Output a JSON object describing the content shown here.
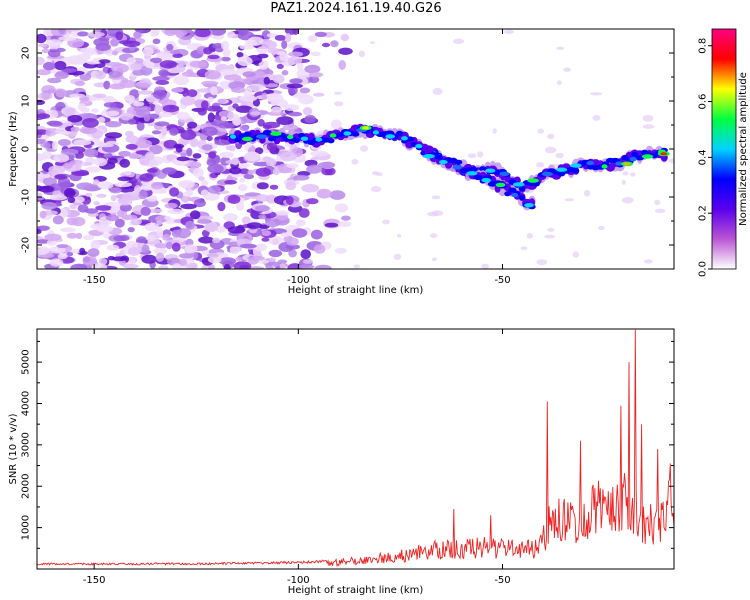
{
  "title": "PAZ1.2024.161.19.40.G26",
  "chart_data": [
    {
      "type": "heatmap",
      "xlabel": "Height of straight line (km)",
      "ylabel": "Frequency (Hz)",
      "xlim": [
        -164,
        -8
      ],
      "ylim": [
        -25,
        25
      ],
      "xticks": [
        -150,
        -100,
        -50
      ],
      "yticks": [
        -20,
        -10,
        0,
        10,
        20
      ],
      "colorbar": {
        "label": "Normalized spectral amplitude",
        "range": [
          0,
          0.86
        ],
        "ticks": [
          0.0,
          0.2,
          0.4,
          0.6,
          0.8
        ],
        "colormap": [
          "#ffffff",
          "#ba55d3",
          "#5a00ee",
          "#0000ff",
          "#00d4ff",
          "#00ff40",
          "#ffff00",
          "#ff0000",
          "#ff0080"
        ]
      },
      "ridge": [
        {
          "x": -116,
          "y": 2.5
        },
        {
          "x": -105,
          "y": 2.6
        },
        {
          "x": -95,
          "y": 1.8
        },
        {
          "x": -85,
          "y": 4.0
        },
        {
          "x": -75,
          "y": 2.5
        },
        {
          "x": -65,
          "y": -2.0
        },
        {
          "x": -58,
          "y": -5.0
        },
        {
          "x": -52,
          "y": -4.0
        },
        {
          "x": -45,
          "y": -8.0
        },
        {
          "x": -38,
          "y": -5.0
        },
        {
          "x": -30,
          "y": -3.5
        },
        {
          "x": -22,
          "y": -3.0
        },
        {
          "x": -15,
          "y": -1.0
        },
        {
          "x": -10,
          "y": -1.0
        }
      ],
      "branch": [
        {
          "x": -68,
          "y": -1.0
        },
        {
          "x": -62,
          "y": -3.0
        },
        {
          "x": -55,
          "y": -6.0
        },
        {
          "x": -48,
          "y": -9.0
        },
        {
          "x": -42,
          "y": -12.0
        }
      ],
      "noise_edge_km": -92
    },
    {
      "type": "line",
      "xlabel": "Height of straight line (km)",
      "ylabel": "SNR (10 * v/v)",
      "xlim": [
        -164,
        -8
      ],
      "ylim": [
        0,
        5800
      ],
      "xticks": [
        -150,
        -100,
        -50
      ],
      "yticks": [
        1000,
        2000,
        3000,
        4000,
        5000
      ],
      "series": [
        {
          "color": "#ee2222",
          "envelope": [
            {
              "x": -164,
              "y": 120
            },
            {
              "x": -140,
              "y": 120
            },
            {
              "x": -120,
              "y": 130
            },
            {
              "x": -105,
              "y": 150
            },
            {
              "x": -95,
              "y": 180
            },
            {
              "x": -85,
              "y": 280
            },
            {
              "x": -75,
              "y": 420
            },
            {
              "x": -70,
              "y": 550
            },
            {
              "x": -65,
              "y": 650
            },
            {
              "x": -60,
              "y": 700
            },
            {
              "x": -55,
              "y": 720
            },
            {
              "x": -50,
              "y": 700
            },
            {
              "x": -45,
              "y": 600
            },
            {
              "x": -42,
              "y": 700
            },
            {
              "x": -40,
              "y": 1200
            },
            {
              "x": -37,
              "y": 1600
            },
            {
              "x": -33,
              "y": 1500
            },
            {
              "x": -30,
              "y": 1800
            },
            {
              "x": -26,
              "y": 2000
            },
            {
              "x": -22,
              "y": 2100
            },
            {
              "x": -19,
              "y": 2500
            },
            {
              "x": -17,
              "y": 2000
            },
            {
              "x": -15,
              "y": 1300
            },
            {
              "x": -12,
              "y": 1700
            },
            {
              "x": -8,
              "y": 2300
            }
          ],
          "peaks": [
            {
              "x": -62,
              "y": 1450
            },
            {
              "x": -53,
              "y": 1300
            },
            {
              "x": -39,
              "y": 4050
            },
            {
              "x": -31,
              "y": 3100
            },
            {
              "x": -21,
              "y": 3950
            },
            {
              "x": -19,
              "y": 5000
            },
            {
              "x": -17.5,
              "y": 5780
            },
            {
              "x": -16,
              "y": 3500
            },
            {
              "x": -12,
              "y": 2900
            },
            {
              "x": -9,
              "y": 2550
            }
          ]
        }
      ]
    }
  ]
}
